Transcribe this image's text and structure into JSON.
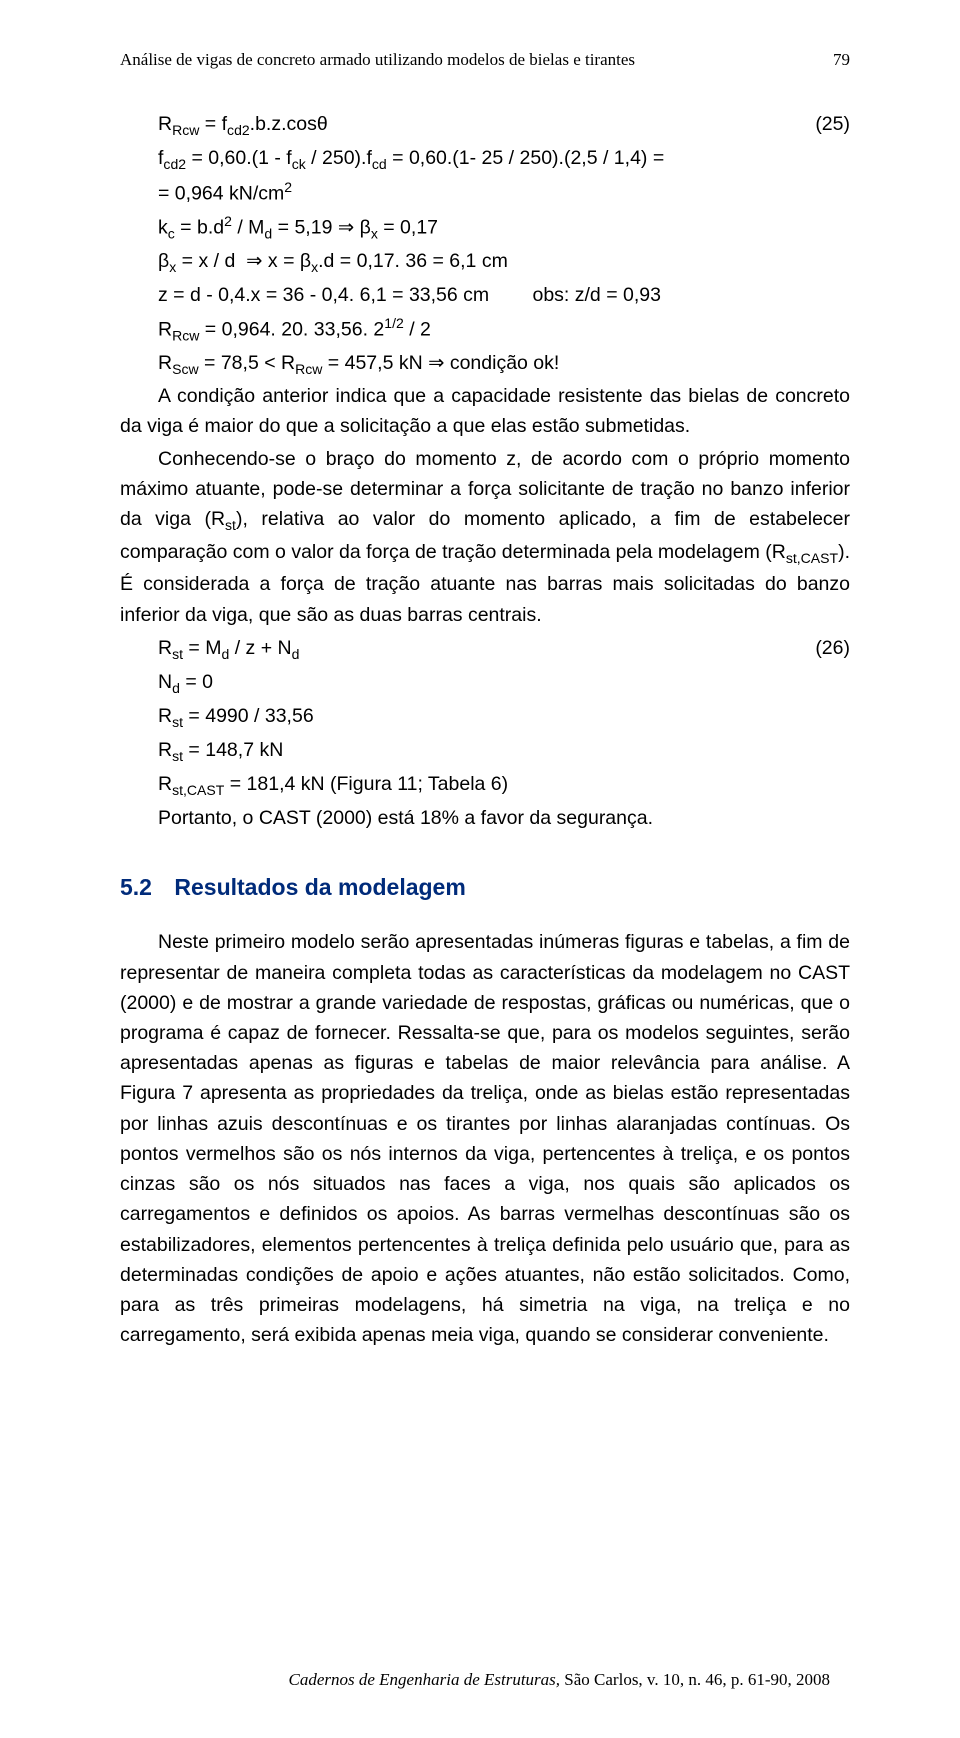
{
  "header": {
    "title": "Análise de vigas de concreto armado utilizando modelos de bielas e tirantes",
    "page_number": "79"
  },
  "eq": {
    "l1": "R<sub>Rcw</sub> = f<sub>cd2</sub>.b.z.cosθ",
    "l1_num": "(25)",
    "l2": "f<sub>cd2</sub> = 0,60.(1 - f<sub>ck</sub> / 250).f<sub>cd</sub> = 0,60.(1- 25 / 250).(2,5 / 1,4) =",
    "l3": "= 0,964 kN/cm<sup>2</sup>",
    "l4": "k<sub>c</sub> = b.d<sup>2</sup> / M<sub>d</sub> = 5,19 ⇒ β<sub>x</sub> = 0,17",
    "l5": "β<sub>x</sub> = x / d  ⇒ x = β<sub>x</sub>.d = 0,17. 36 = 6,1 cm",
    "l6": "z = d - 0,4.x = 36 - 0,4. 6,1 = 33,56 cm        obs: z/d = 0,93",
    "l7": "R<sub>Rcw</sub> = 0,964. 20. 33,56. 2<sup>1/2</sup> / 2",
    "l8": "R<sub>Scw</sub> = 78,5 < R<sub>Rcw</sub> = 457,5 kN ⇒ condição ok!"
  },
  "para1": "A condição anterior indica que a capacidade resistente das bielas de concreto da viga é maior do que a solicitação a que elas estão submetidas.",
  "para2": "Conhecendo-se o braço do momento z, de acordo com o próprio momento máximo atuante, pode-se determinar a força solicitante de tração no banzo inferior da viga (R<sub>st</sub>), relativa ao valor do momento aplicado, a fim de estabelecer comparação com o valor da força de tração determinada pela modelagem (R<sub>st,CAST</sub>). É considerada a força de tração atuante nas barras mais solicitadas do banzo inferior da viga, que são as duas barras centrais.",
  "eq2": {
    "l1": "R<sub>st</sub> = M<sub>d</sub> / z + N<sub>d</sub>",
    "l1_num": "(26)",
    "l2": "N<sub>d</sub> = 0",
    "l3": "R<sub>st</sub> = 4990 / 33,56",
    "l4": "R<sub>st</sub> = 148,7 kN",
    "l5": "R<sub>st,CAST</sub> = 181,4 kN (Figura 11; Tabela 6)",
    "l6": "Portanto, o CAST (2000) está 18% a favor da segurança."
  },
  "section": {
    "number": "5.2",
    "title": "Resultados da modelagem"
  },
  "para3": "Neste primeiro modelo serão apresentadas inúmeras figuras e tabelas, a fim de representar de maneira completa todas as características da modelagem no CAST (2000) e de mostrar a grande variedade de respostas, gráficas ou numéricas, que o programa é capaz de fornecer. Ressalta-se que, para os modelos seguintes, serão apresentadas apenas as figuras e tabelas de maior relevância para análise. A Figura 7 apresenta as propriedades da treliça, onde as bielas estão representadas por linhas azuis descontínuas e os tirantes por linhas alaranjadas contínuas. Os pontos vermelhos são os nós internos da viga, pertencentes à treliça, e os pontos cinzas são os nós situados nas faces a viga, nos quais são aplicados os carregamentos e definidos os apoios. As barras vermelhas descontínuas são os estabilizadores, elementos pertencentes à treliça definida pelo usuário que, para as determinadas condições de apoio e ações atuantes, não estão solicitados. Como, para as três primeiras modelagens, há simetria na viga, na treliça e no carregamento, será exibida apenas meia viga, quando se considerar conveniente.",
  "footer": {
    "text_italic": "Cadernos de Engenharia de Estruturas,",
    "text_rest": " São Carlos, v. 10, n. 46, p. 61-90, 2008"
  },
  "colors": {
    "heading": "#002b7a",
    "body_text": "#000000",
    "background": "#ffffff"
  },
  "fonts": {
    "body_family": "Arial",
    "header_family": "Times New Roman",
    "body_size_pt": 12,
    "heading_size_pt": 14
  }
}
